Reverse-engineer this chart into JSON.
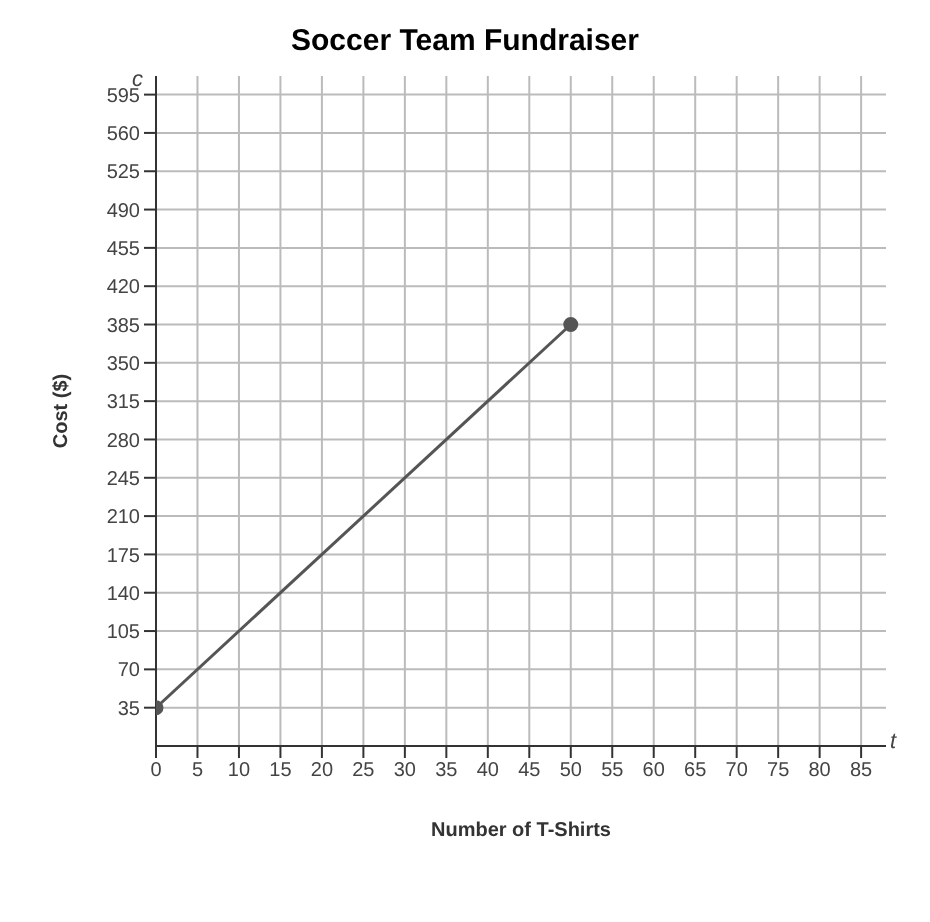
{
  "chart_data": {
    "type": "line",
    "title": "Soccer Team Fundraiser",
    "xlabel": "Number of T-Shirts",
    "ylabel": "Cost ($)",
    "annotations": [
      "c",
      "t"
    ],
    "x": [
      0,
      50
    ],
    "series": [
      {
        "color": "#555555",
        "values": [
          35,
          385
        ]
      }
    ],
    "xlim": [
      0,
      88
    ],
    "xticks": [
      0,
      5,
      10,
      15,
      20,
      25,
      30,
      35,
      40,
      45,
      50,
      55,
      60,
      65,
      70,
      75,
      80,
      85
    ],
    "ylim": [
      0,
      612
    ],
    "yticks": [
      35,
      70,
      105,
      140,
      175,
      210,
      245,
      280,
      315,
      350,
      385,
      420,
      455,
      490,
      525,
      560,
      595
    ],
    "grid": true,
    "marker": "circle",
    "line_style": "solid",
    "legend": false
  }
}
